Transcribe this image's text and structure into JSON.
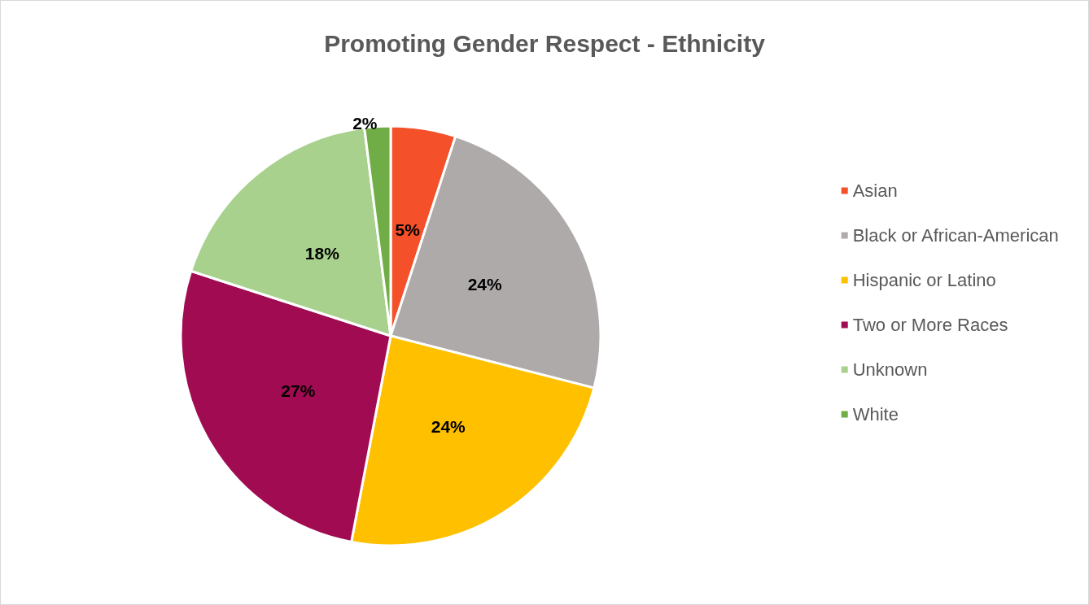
{
  "chart_data": {
    "type": "pie",
    "title": "Promoting Gender Respect - Ethnicity",
    "categories": [
      "Asian",
      "Black or African-American",
      "Hispanic or Latino",
      "Two or More Races",
      "Unknown",
      "White"
    ],
    "values": [
      5,
      24,
      24,
      27,
      18,
      2
    ],
    "value_labels": [
      "5%",
      "24%",
      "24%",
      "27%",
      "18%",
      "2%"
    ],
    "colors": [
      "#f4502a",
      "#aeaaaa",
      "#ffc000",
      "#a00b52",
      "#a9d18e",
      "#70ad47"
    ],
    "legend": "right"
  }
}
